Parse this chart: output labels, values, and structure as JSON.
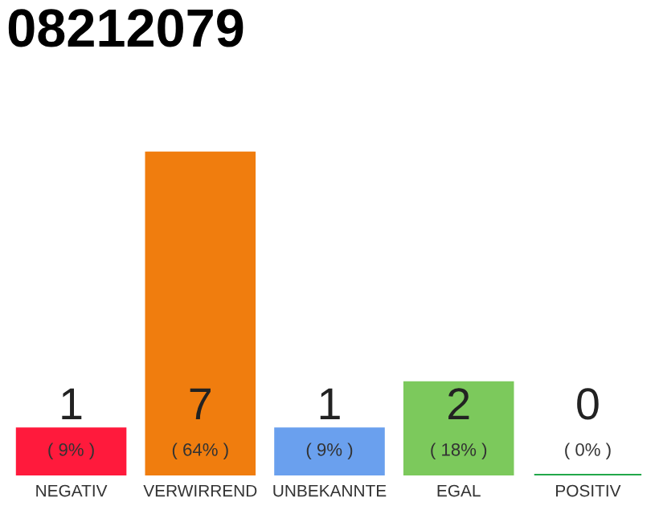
{
  "chart_data": {
    "type": "bar",
    "title": "08212079",
    "categories": [
      "NEGATIV",
      "VERWIRREND",
      "UNBEKANNTE",
      "EGAL",
      "POSITIV"
    ],
    "values": [
      1,
      7,
      1,
      2,
      0
    ],
    "colors": [
      "#ff1a3c",
      "#f07d0e",
      "#6aa0ee",
      "#7cc95c",
      "#22a84a"
    ],
    "data_labels": true,
    "annotations": [
      "( 9% )",
      "( 64% )",
      "( 9% )",
      "( 18% )",
      "( 0% )"
    ],
    "grid": false,
    "legend": false
  }
}
